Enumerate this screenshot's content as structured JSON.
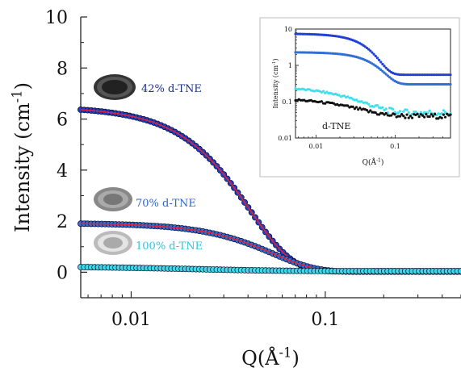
{
  "chart_data": [
    {
      "type": "scatter",
      "xlabel": "Q(Å",
      "xlabel_sup": "-1",
      "xlabel_close": ")",
      "ylabel": "Intensity (cm",
      "ylabel_sup": "-1",
      "ylabel_close": ")",
      "x_scale": "log",
      "xlim": [
        0.0055,
        0.5
      ],
      "ylim": [
        -1,
        10
      ],
      "y_ticks": [
        0,
        2,
        4,
        6,
        8,
        10
      ],
      "y_ticklabels": [
        "0",
        "2",
        "4",
        "6",
        "8",
        "10"
      ],
      "x_ticks": [
        0.01,
        0.1
      ],
      "x_ticklabels": [
        "0.01",
        "0.1"
      ],
      "series": [
        {
          "name": "42% d-TNE",
          "color": "#1f3fc8",
          "label_color": "#1a2f8a",
          "I0": 6.45,
          "Rg": 42,
          "bg": 0.03,
          "fit": true
        },
        {
          "name": "70% d-TNE",
          "color": "#2f6fd6",
          "label_color": "#2a66d0",
          "I0": 1.9,
          "Rg": 32,
          "bg": 0.02,
          "fit": true
        },
        {
          "name": "100% d-TNE",
          "color": "#3fd8e6",
          "label_color": "#33c4dc",
          "I0": 0.2,
          "Rg": 200,
          "bg": 0.045,
          "fit": false
        }
      ],
      "fit_color": "#e0223a"
    },
    {
      "type": "scatter",
      "inset": true,
      "xlabel": "Q(Å",
      "xlabel_sup": "-1",
      "xlabel_close": ")",
      "ylabel": "Intensity (cm",
      "ylabel_sup": "-1",
      "ylabel_close": ")",
      "x_scale": "log",
      "y_scale": "log",
      "xlim": [
        0.0055,
        0.5
      ],
      "ylim": [
        0.01,
        10
      ],
      "y_ticks": [
        0.01,
        0.1,
        1,
        10
      ],
      "y_ticklabels": [
        "0.01",
        "0.1",
        "1",
        "10"
      ],
      "x_ticks": [
        0.01,
        0.1
      ],
      "x_ticklabels": [
        "0.01",
        "0.1"
      ],
      "annotation": "d-TNE",
      "series": [
        {
          "color": "#1f3fd8",
          "I0": 6.9,
          "Rg": 40,
          "bg": 0.55
        },
        {
          "color": "#2f6fd6",
          "I0": 2.0,
          "Rg": 32,
          "bg": 0.3
        },
        {
          "color": "#3fe0ee",
          "I0": 0.22,
          "Rg": 200,
          "bg": 0.05,
          "noise": 0.01
        },
        {
          "color": "#111111",
          "I0": 0.09,
          "Rg": 300,
          "bg": 0.04,
          "noise": 0.006
        }
      ]
    }
  ]
}
